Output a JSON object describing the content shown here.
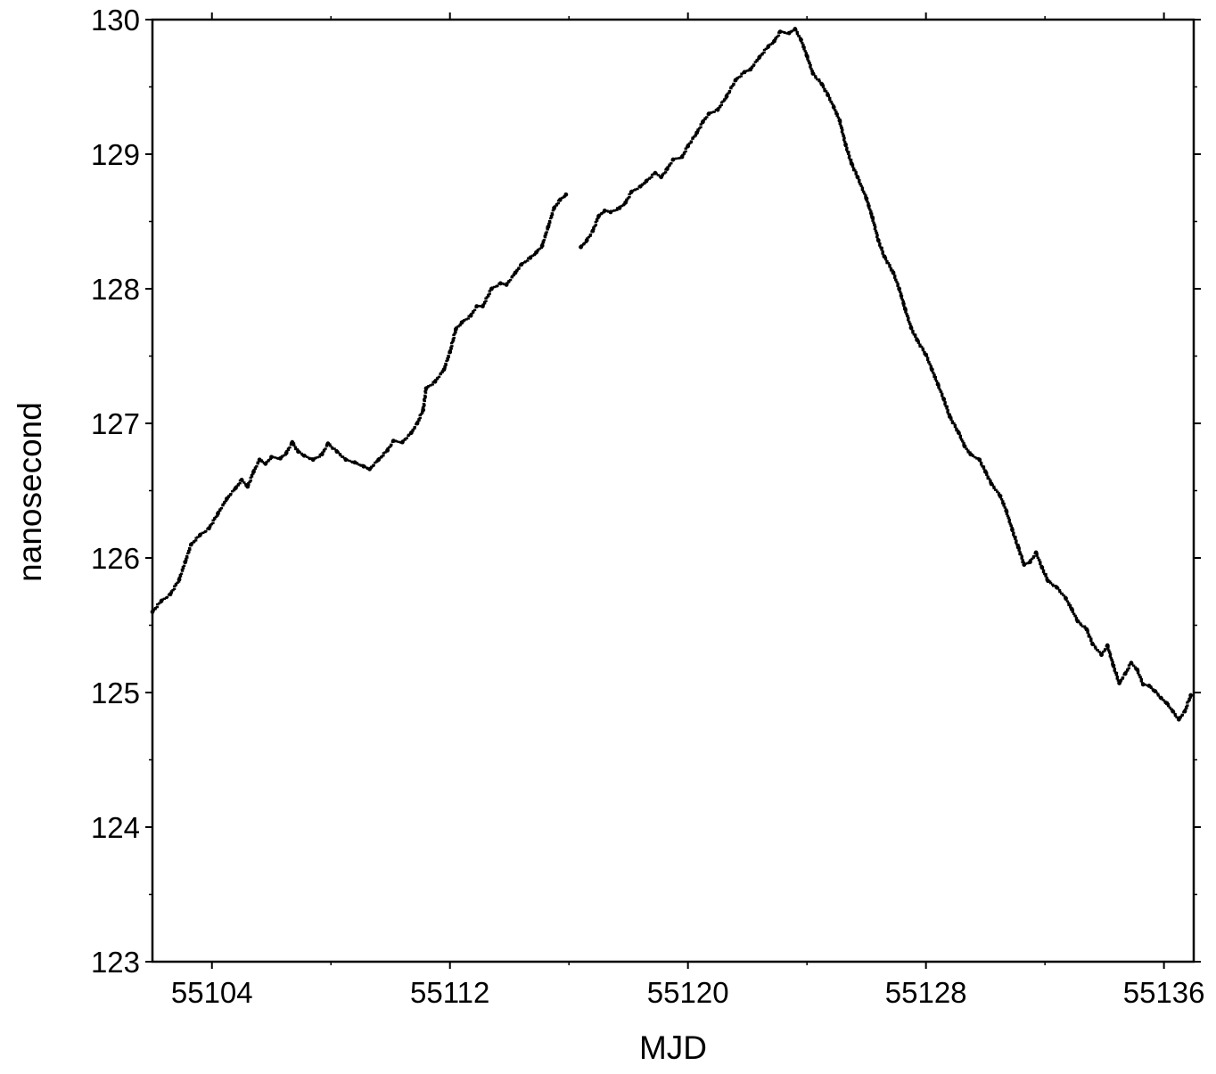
{
  "chart_data": {
    "type": "line",
    "title": "",
    "xlabel": "MJD",
    "ylabel": "nanosecond",
    "xlim": [
      55102,
      55137
    ],
    "ylim": [
      123,
      130
    ],
    "grid": false,
    "legend": "none",
    "marker": "dense-dots",
    "color": "#000000",
    "xticks": [
      55104,
      55112,
      55120,
      55128,
      55136
    ],
    "xtick_labels": [
      "55104",
      "55112",
      "55120",
      "55128",
      "55136"
    ],
    "yticks": [
      123,
      124,
      125,
      126,
      127,
      128,
      129,
      130
    ],
    "ytick_labels": [
      "123",
      "124",
      "125",
      "126",
      "127",
      "128",
      "129",
      "130"
    ],
    "series": [
      {
        "values": [
          [
            55102.0,
            125.6
          ],
          [
            55102.3,
            125.68
          ],
          [
            55102.6,
            125.73
          ],
          [
            55102.9,
            125.84
          ],
          [
            55103.1,
            125.97
          ],
          [
            55103.3,
            126.1
          ],
          [
            55103.6,
            126.17
          ],
          [
            55103.9,
            126.22
          ],
          [
            55104.2,
            126.33
          ],
          [
            55104.5,
            126.44
          ],
          [
            55104.8,
            126.52
          ],
          [
            55105.0,
            126.58
          ],
          [
            55105.2,
            126.53
          ],
          [
            55105.4,
            126.64
          ],
          [
            55105.6,
            126.73
          ],
          [
            55105.8,
            126.7
          ],
          [
            55106.0,
            126.75
          ],
          [
            55106.3,
            126.74
          ],
          [
            55106.5,
            126.78
          ],
          [
            55106.7,
            126.86
          ],
          [
            55106.9,
            126.79
          ],
          [
            55107.1,
            126.76
          ],
          [
            55107.4,
            126.73
          ],
          [
            55107.7,
            126.77
          ],
          [
            55107.9,
            126.85
          ],
          [
            55108.2,
            126.79
          ],
          [
            55108.5,
            126.73
          ],
          [
            55108.8,
            126.71
          ],
          [
            55109.1,
            126.68
          ],
          [
            55109.3,
            126.66
          ],
          [
            55109.6,
            126.73
          ],
          [
            55109.9,
            126.8
          ],
          [
            55110.1,
            126.87
          ],
          [
            55110.4,
            126.86
          ],
          [
            55110.7,
            126.93
          ],
          [
            55110.9,
            127.0
          ],
          [
            55111.1,
            127.1
          ],
          [
            55111.2,
            127.26
          ],
          [
            55111.5,
            127.31
          ],
          [
            55111.8,
            127.4
          ],
          [
            55112.0,
            127.53
          ],
          [
            55112.2,
            127.7
          ],
          [
            55112.4,
            127.75
          ],
          [
            55112.7,
            127.8
          ],
          [
            55112.9,
            127.87
          ],
          [
            55113.1,
            127.87
          ],
          [
            55113.4,
            128.0
          ],
          [
            55113.7,
            128.04
          ],
          [
            55113.9,
            128.03
          ],
          [
            55114.2,
            128.12
          ],
          [
            55114.4,
            128.18
          ],
          [
            55114.7,
            128.23
          ],
          [
            55114.9,
            128.27
          ],
          [
            55115.1,
            128.32
          ],
          [
            55115.3,
            128.46
          ],
          [
            55115.5,
            128.6
          ],
          [
            55115.7,
            128.66
          ],
          [
            55115.9,
            128.7
          ]
        ]
      },
      {
        "values": [
          [
            55116.4,
            128.31
          ],
          [
            55116.6,
            128.36
          ],
          [
            55116.8,
            128.43
          ],
          [
            55117.0,
            128.54
          ],
          [
            55117.2,
            128.58
          ],
          [
            55117.4,
            128.57
          ],
          [
            55117.7,
            128.6
          ],
          [
            55117.9,
            128.64
          ],
          [
            55118.1,
            128.72
          ],
          [
            55118.4,
            128.76
          ],
          [
            55118.6,
            128.8
          ],
          [
            55118.9,
            128.86
          ],
          [
            55119.1,
            128.83
          ],
          [
            55119.3,
            128.89
          ],
          [
            55119.5,
            128.96
          ],
          [
            55119.8,
            128.98
          ],
          [
            55120.0,
            129.06
          ],
          [
            55120.3,
            129.16
          ],
          [
            55120.5,
            129.24
          ],
          [
            55120.7,
            129.3
          ],
          [
            55121.0,
            129.33
          ],
          [
            55121.3,
            129.43
          ],
          [
            55121.6,
            129.55
          ],
          [
            55121.9,
            129.61
          ],
          [
            55122.1,
            129.63
          ],
          [
            55122.4,
            129.72
          ],
          [
            55122.7,
            129.8
          ],
          [
            55122.9,
            129.84
          ],
          [
            55123.1,
            129.91
          ],
          [
            55123.4,
            129.9
          ],
          [
            55123.6,
            129.93
          ],
          [
            55123.8,
            129.85
          ],
          [
            55124.0,
            129.73
          ],
          [
            55124.2,
            129.6
          ],
          [
            55124.5,
            129.52
          ],
          [
            55124.7,
            129.44
          ],
          [
            55124.9,
            129.35
          ],
          [
            55125.1,
            129.25
          ],
          [
            55125.3,
            129.07
          ],
          [
            55125.5,
            128.93
          ],
          [
            55125.7,
            128.83
          ],
          [
            55126.0,
            128.67
          ],
          [
            55126.2,
            128.53
          ],
          [
            55126.4,
            128.36
          ],
          [
            55126.6,
            128.24
          ],
          [
            55126.9,
            128.12
          ],
          [
            55127.1,
            128.0
          ],
          [
            55127.3,
            127.85
          ],
          [
            55127.5,
            127.71
          ],
          [
            55127.7,
            127.62
          ],
          [
            55128.0,
            127.51
          ],
          [
            55128.2,
            127.4
          ],
          [
            55128.4,
            127.29
          ],
          [
            55128.6,
            127.18
          ],
          [
            55128.8,
            127.05
          ],
          [
            55129.1,
            126.93
          ],
          [
            55129.3,
            126.83
          ],
          [
            55129.5,
            126.77
          ],
          [
            55129.8,
            126.73
          ],
          [
            55130.0,
            126.64
          ],
          [
            55130.2,
            126.55
          ],
          [
            55130.5,
            126.46
          ],
          [
            55130.7,
            126.35
          ],
          [
            55130.9,
            126.21
          ],
          [
            55131.1,
            126.08
          ],
          [
            55131.3,
            125.95
          ],
          [
            55131.5,
            125.97
          ],
          [
            55131.7,
            126.04
          ],
          [
            55131.9,
            125.93
          ],
          [
            55132.1,
            125.83
          ],
          [
            55132.4,
            125.78
          ],
          [
            55132.7,
            125.7
          ],
          [
            55132.9,
            125.62
          ],
          [
            55133.1,
            125.53
          ],
          [
            55133.4,
            125.47
          ],
          [
            55133.6,
            125.36
          ],
          [
            55133.9,
            125.28
          ],
          [
            55134.1,
            125.35
          ],
          [
            55134.3,
            125.2
          ],
          [
            55134.5,
            125.07
          ],
          [
            55134.7,
            125.14
          ],
          [
            55134.9,
            125.22
          ],
          [
            55135.1,
            125.17
          ],
          [
            55135.3,
            125.06
          ],
          [
            55135.5,
            125.05
          ],
          [
            55135.7,
            125.01
          ],
          [
            55135.9,
            124.96
          ],
          [
            55136.1,
            124.92
          ],
          [
            55136.3,
            124.86
          ],
          [
            55136.5,
            124.8
          ],
          [
            55136.7,
            124.86
          ],
          [
            55136.9,
            124.98
          ]
        ]
      }
    ]
  }
}
